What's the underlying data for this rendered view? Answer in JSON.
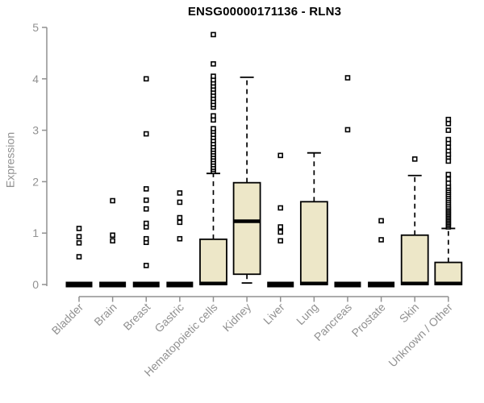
{
  "chart_data": {
    "type": "boxplot",
    "title": "ENSG00000171136 - RLN3",
    "xlabel": "",
    "ylabel": "Expression",
    "ylim": [
      0,
      5
    ],
    "yticks": [
      0,
      1,
      2,
      3,
      4,
      5
    ],
    "grid": false,
    "legend": "none",
    "outlier_marker": "open-square",
    "colors": {
      "box_fill": "#EDE7C8",
      "box_stroke": "#000000",
      "median": "#000000",
      "whisker": "#000000",
      "outlier_stroke": "#000000",
      "outlier_fill": "#FFFFFF",
      "axis": "#919191",
      "title": "#000000",
      "background": "#FFFFFF"
    },
    "categories": [
      "Bladder",
      "Brain",
      "Breast",
      "Gastric",
      "Hematopoietic cells",
      "Kidney",
      "Liver",
      "Lung",
      "Pancreas",
      "Prostate",
      "Skin",
      "Unknown / Other"
    ],
    "series": [
      {
        "name": "Bladder",
        "q1": 0,
        "median": 0,
        "q3": 0,
        "whisker_low": 0,
        "whisker_high": 0,
        "outliers": [
          0.54,
          0.81,
          0.93,
          1.09
        ]
      },
      {
        "name": "Brain",
        "q1": 0,
        "median": 0,
        "q3": 0,
        "whisker_low": 0,
        "whisker_high": 0,
        "outliers": [
          0.85,
          0.96,
          1.63
        ]
      },
      {
        "name": "Breast",
        "q1": 0,
        "median": 0,
        "q3": 0,
        "whisker_low": 0,
        "whisker_high": 0,
        "outliers": [
          0.37,
          0.82,
          0.89,
          1.12,
          1.19,
          1.47,
          1.64,
          1.86,
          2.93,
          4.0
        ]
      },
      {
        "name": "Gastric",
        "q1": 0,
        "median": 0,
        "q3": 0,
        "whisker_low": 0,
        "whisker_high": 0,
        "outliers": [
          0.89,
          1.21,
          1.3,
          1.6,
          1.78
        ]
      },
      {
        "name": "Hematopoietic cells",
        "q1": 0,
        "median": 0.02,
        "q3": 0.88,
        "whisker_low": 0,
        "whisker_high": 2.16,
        "outliers": [
          2.2,
          2.24,
          2.28,
          2.33,
          2.38,
          2.43,
          2.48,
          2.53,
          2.58,
          2.63,
          2.68,
          2.74,
          2.8,
          2.86,
          2.92,
          2.98,
          3.03,
          3.2,
          3.28,
          3.45,
          3.5,
          3.56,
          3.62,
          3.68,
          3.74,
          3.8,
          3.86,
          3.92,
          3.98,
          4.05,
          4.29,
          4.86
        ]
      },
      {
        "name": "Kidney",
        "q1": 0.2,
        "median": 1.23,
        "q3": 1.98,
        "whisker_low": 0.03,
        "whisker_high": 4.03,
        "outliers": []
      },
      {
        "name": "Liver",
        "q1": 0,
        "median": 0,
        "q3": 0,
        "whisker_low": 0,
        "whisker_high": 0,
        "outliers": [
          0.85,
          1.02,
          1.12,
          1.49,
          2.51
        ]
      },
      {
        "name": "Lung",
        "q1": 0,
        "median": 0.02,
        "q3": 1.61,
        "whisker_low": 0,
        "whisker_high": 2.56,
        "outliers": []
      },
      {
        "name": "Pancreas",
        "q1": 0,
        "median": 0,
        "q3": 0,
        "whisker_low": 0,
        "whisker_high": 0,
        "outliers": [
          3.01,
          4.02
        ]
      },
      {
        "name": "Prostate",
        "q1": 0,
        "median": 0,
        "q3": 0,
        "whisker_low": 0,
        "whisker_high": 0,
        "outliers": [
          0.87,
          1.24
        ]
      },
      {
        "name": "Skin",
        "q1": 0,
        "median": 0.02,
        "q3": 0.96,
        "whisker_low": 0,
        "whisker_high": 2.12,
        "outliers": [
          2.44
        ]
      },
      {
        "name": "Unknown / Other",
        "q1": 0,
        "median": 0.02,
        "q3": 0.43,
        "whisker_low": 0,
        "whisker_high": 1.09,
        "outliers": [
          1.12,
          1.15,
          1.18,
          1.21,
          1.24,
          1.27,
          1.3,
          1.33,
          1.36,
          1.39,
          1.42,
          1.45,
          1.48,
          1.51,
          1.55,
          1.59,
          1.63,
          1.67,
          1.71,
          1.75,
          1.79,
          1.83,
          1.87,
          1.91,
          1.97,
          2.05,
          2.14,
          2.4,
          2.48,
          2.53,
          2.6,
          2.67,
          2.75,
          2.82,
          3.0,
          3.13,
          3.21
        ]
      }
    ]
  }
}
